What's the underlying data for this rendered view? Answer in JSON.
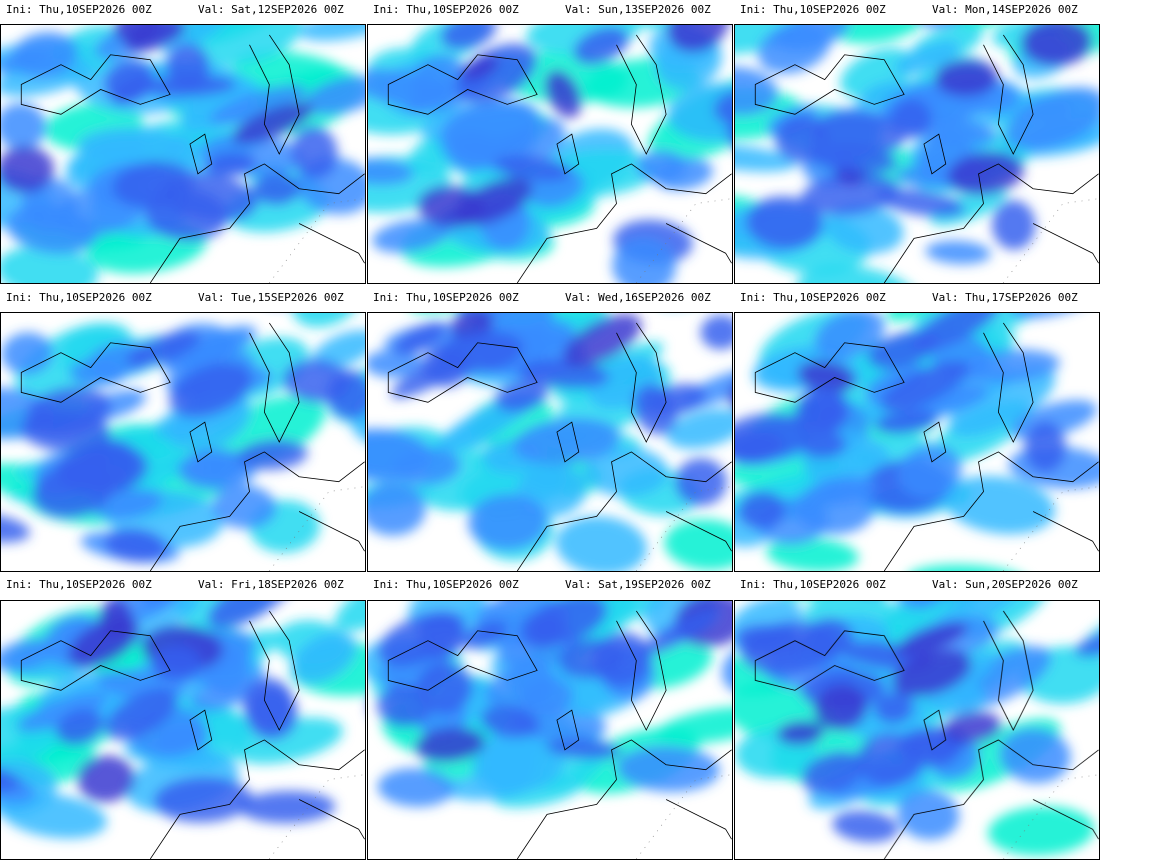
{
  "panels": [
    {
      "ini": "Ini: Thu,10SEP2026 00Z",
      "val": "Val: Sat,12SEP2026 00Z"
    },
    {
      "ini": "Ini: Thu,10SEP2026 00Z",
      "val": "Val: Sun,13SEP2026 00Z"
    },
    {
      "ini": "Ini: Thu,10SEP2026 00Z",
      "val": "Val: Mon,14SEP2026 00Z"
    },
    {
      "ini": "Ini: Thu,10SEP2026 00Z",
      "val": "Val: Tue,15SEP2026 00Z"
    },
    {
      "ini": "Ini: Thu,10SEP2026 00Z",
      "val": "Val: Wed,16SEP2026 00Z"
    },
    {
      "ini": "Ini: Thu,10SEP2026 00Z",
      "val": "Val: Thu,17SEP2026 00Z"
    },
    {
      "ini": "Ini: Thu,10SEP2026 00Z",
      "val": "Val: Fri,18SEP2026 00Z"
    },
    {
      "ini": "Ini: Thu,10SEP2026 00Z",
      "val": "Val: Sat,19SEP2026 00Z"
    },
    {
      "ini": "Ini: Thu,10SEP2026 00Z",
      "val": "Val: Sun,20SEP2026 00Z"
    }
  ]
}
